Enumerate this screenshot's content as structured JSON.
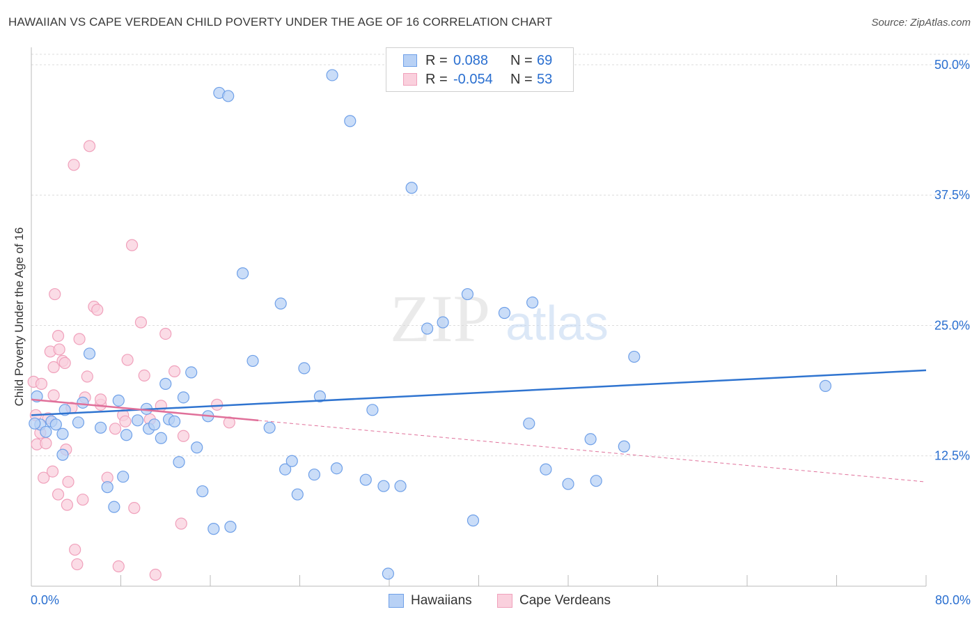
{
  "title": "HAWAIIAN VS CAPE VERDEAN CHILD POVERTY UNDER THE AGE OF 16 CORRELATION CHART",
  "source": "Source: ZipAtlas.com",
  "watermark": {
    "zip": "ZIP",
    "atlas": "atlas"
  },
  "legend": {
    "rows": [
      {
        "r_label": "R =",
        "r_value": "0.088",
        "n_label": "N =",
        "n_value": "69",
        "color": "#6fa0e8",
        "fill": "#b8d1f5"
      },
      {
        "r_label": "R =",
        "r_value": "-0.054",
        "n_label": "N =",
        "n_value": "53",
        "color": "#f0a0bb",
        "fill": "#fad0dd"
      }
    ]
  },
  "bottom_legend": {
    "hawaiians": "Hawaiians",
    "cape_verdeans": "Cape Verdeans"
  },
  "x_axis": {
    "min_label": "0.0%",
    "max_label": "80.0%"
  },
  "chart_data": {
    "type": "scatter",
    "title": "HAWAIIAN VS CAPE VERDEAN CHILD POVERTY UNDER THE AGE OF 16 CORRELATION CHART",
    "xlabel": "",
    "ylabel": "Child Poverty Under the Age of 16",
    "xlim": [
      0,
      80
    ],
    "ylim": [
      0,
      51
    ],
    "y_ticks": [
      12.5,
      25.0,
      37.5,
      50.0
    ],
    "y_tick_labels": [
      "12.5%",
      "25.0%",
      "37.5%",
      "50.0%"
    ],
    "grid": true,
    "series": [
      {
        "name": "Hawaiians",
        "color": "#6fa0e8",
        "fill": "#b8d1f5",
        "trend": {
          "x": [
            0,
            80
          ],
          "y": [
            16.4,
            20.7
          ],
          "style": "solid",
          "color": "#2f74d0"
        },
        "points": [
          [
            0.5,
            18.2
          ],
          [
            0.8,
            15.5
          ],
          [
            1.3,
            14.8
          ],
          [
            1.8,
            15.8
          ],
          [
            2.2,
            15.5
          ],
          [
            2.8,
            14.6
          ],
          [
            3.0,
            16.9
          ],
          [
            2.8,
            12.6
          ],
          [
            4.2,
            15.7
          ],
          [
            4.6,
            17.6
          ],
          [
            5.2,
            22.3
          ],
          [
            6.2,
            15.2
          ],
          [
            6.8,
            9.5
          ],
          [
            7.4,
            7.6
          ],
          [
            7.8,
            17.8
          ],
          [
            8.2,
            10.5
          ],
          [
            8.5,
            14.5
          ],
          [
            9.5,
            15.9
          ],
          [
            10.3,
            17.0
          ],
          [
            10.5,
            15.1
          ],
          [
            11.0,
            15.5
          ],
          [
            11.6,
            14.2
          ],
          [
            12.0,
            19.4
          ],
          [
            12.3,
            16.0
          ],
          [
            12.8,
            15.8
          ],
          [
            13.2,
            11.9
          ],
          [
            13.6,
            18.1
          ],
          [
            14.3,
            20.5
          ],
          [
            14.8,
            13.3
          ],
          [
            15.3,
            9.1
          ],
          [
            15.8,
            16.3
          ],
          [
            16.3,
            5.5
          ],
          [
            16.8,
            47.3
          ],
          [
            17.6,
            47.0
          ],
          [
            17.8,
            5.7
          ],
          [
            18.9,
            30.0
          ],
          [
            19.8,
            21.6
          ],
          [
            21.3,
            15.2
          ],
          [
            22.3,
            27.1
          ],
          [
            22.7,
            11.2
          ],
          [
            23.3,
            12.0
          ],
          [
            23.8,
            8.8
          ],
          [
            24.4,
            20.9
          ],
          [
            25.3,
            10.7
          ],
          [
            25.8,
            18.2
          ],
          [
            26.9,
            49.0
          ],
          [
            27.3,
            11.3
          ],
          [
            28.5,
            44.6
          ],
          [
            29.9,
            10.2
          ],
          [
            30.5,
            16.9
          ],
          [
            31.5,
            9.6
          ],
          [
            31.9,
            1.2
          ],
          [
            33.0,
            9.6
          ],
          [
            34.0,
            38.2
          ],
          [
            35.4,
            24.7
          ],
          [
            36.8,
            25.3
          ],
          [
            39.0,
            28.0
          ],
          [
            39.5,
            6.3
          ],
          [
            42.3,
            26.2
          ],
          [
            44.5,
            15.6
          ],
          [
            44.8,
            27.2
          ],
          [
            46.0,
            11.2
          ],
          [
            48.0,
            9.8
          ],
          [
            50.0,
            14.1
          ],
          [
            50.5,
            10.1
          ],
          [
            53.0,
            13.4
          ],
          [
            53.9,
            22.0
          ],
          [
            71.0,
            19.2
          ],
          [
            0.3,
            15.6
          ]
        ]
      },
      {
        "name": "Cape Verdeans",
        "color": "#f0a0bb",
        "fill": "#fad0dd",
        "trend": {
          "x": [
            0,
            80
          ],
          "y": [
            17.9,
            10.0
          ],
          "solid_until": 20.3,
          "style": "solid-then-dashed",
          "color": "#e0709a"
        },
        "points": [
          [
            0.2,
            19.6
          ],
          [
            0.4,
            16.4
          ],
          [
            0.5,
            13.6
          ],
          [
            0.8,
            14.7
          ],
          [
            0.9,
            19.4
          ],
          [
            1.1,
            10.4
          ],
          [
            1.3,
            13.7
          ],
          [
            1.5,
            16.1
          ],
          [
            1.7,
            22.5
          ],
          [
            1.9,
            11.0
          ],
          [
            2.0,
            18.3
          ],
          [
            2.0,
            21.0
          ],
          [
            2.1,
            28.0
          ],
          [
            2.4,
            8.8
          ],
          [
            2.4,
            24.0
          ],
          [
            2.5,
            22.7
          ],
          [
            2.8,
            21.6
          ],
          [
            3.0,
            21.4
          ],
          [
            3.1,
            13.1
          ],
          [
            3.2,
            7.8
          ],
          [
            3.3,
            10.0
          ],
          [
            3.6,
            17.1
          ],
          [
            3.8,
            40.4
          ],
          [
            3.9,
            3.5
          ],
          [
            4.1,
            2.1
          ],
          [
            4.3,
            23.7
          ],
          [
            4.6,
            8.3
          ],
          [
            4.8,
            18.1
          ],
          [
            5.0,
            20.1
          ],
          [
            5.2,
            42.2
          ],
          [
            5.6,
            26.8
          ],
          [
            5.9,
            26.5
          ],
          [
            6.2,
            17.4
          ],
          [
            6.2,
            17.9
          ],
          [
            6.8,
            10.4
          ],
          [
            7.5,
            15.1
          ],
          [
            7.8,
            1.9
          ],
          [
            8.2,
            16.4
          ],
          [
            8.4,
            15.8
          ],
          [
            8.6,
            21.7
          ],
          [
            9.0,
            32.7
          ],
          [
            9.2,
            7.5
          ],
          [
            9.8,
            25.3
          ],
          [
            10.1,
            20.2
          ],
          [
            10.6,
            16.0
          ],
          [
            11.1,
            1.1
          ],
          [
            11.6,
            17.3
          ],
          [
            12.0,
            24.2
          ],
          [
            12.8,
            20.6
          ],
          [
            13.4,
            6.0
          ],
          [
            13.6,
            14.4
          ],
          [
            16.6,
            17.4
          ],
          [
            17.7,
            15.7
          ]
        ]
      }
    ]
  }
}
